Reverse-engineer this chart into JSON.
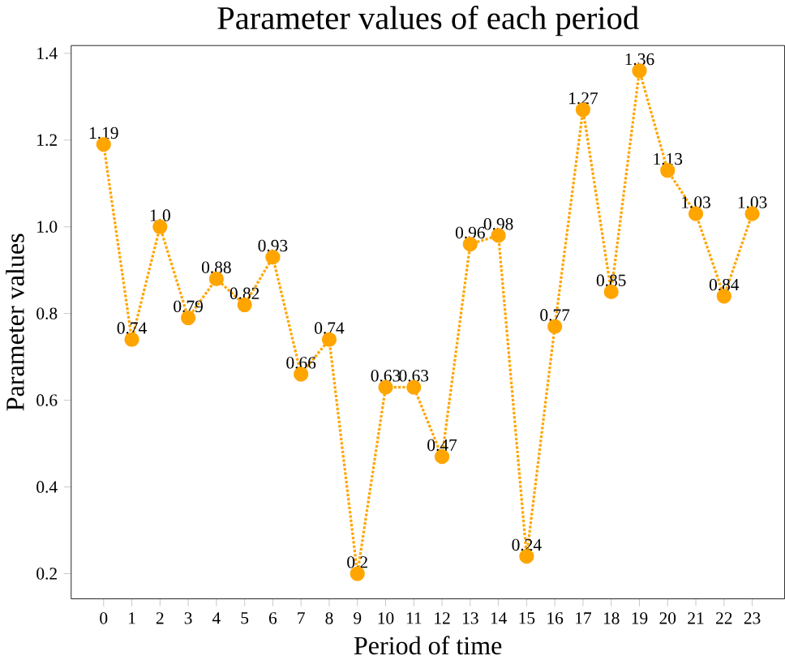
{
  "chart_data": {
    "type": "line",
    "title": "Parameter values of each period",
    "xlabel": "Period of time",
    "ylabel": "Parameter values",
    "x": [
      0,
      1,
      2,
      3,
      4,
      5,
      6,
      7,
      8,
      9,
      10,
      11,
      12,
      13,
      14,
      15,
      16,
      17,
      18,
      19,
      20,
      21,
      22,
      23
    ],
    "values": [
      1.19,
      0.74,
      1.0,
      0.79,
      0.88,
      0.82,
      0.93,
      0.66,
      0.74,
      0.2,
      0.63,
      0.63,
      0.47,
      0.96,
      0.98,
      0.24,
      0.77,
      1.27,
      0.85,
      1.36,
      1.13,
      1.03,
      0.84,
      1.03
    ],
    "value_labels": [
      "1.19",
      "0.74",
      "1.0",
      "0.79",
      "0.88",
      "0.82",
      "0.93",
      "0.66",
      "0.74",
      "0.2",
      "0.63",
      "0.63",
      "0.47",
      "0.96",
      "0.98",
      "0.24",
      "0.77",
      "1.27",
      "0.85",
      "1.36",
      "1.13",
      "1.03",
      "0.84",
      "1.03"
    ],
    "color": "#ffa500",
    "marker": "circle",
    "line_style": "dotted",
    "xlim": [
      -1.15,
      24.15
    ],
    "xticks": [
      0,
      1,
      2,
      3,
      4,
      5,
      6,
      7,
      8,
      9,
      10,
      11,
      12,
      13,
      14,
      15,
      16,
      17,
      18,
      19,
      20,
      21,
      22,
      23
    ],
    "ylim": [
      0.142,
      1.418
    ],
    "yticks": [
      0.2,
      0.4,
      0.6,
      0.8,
      {
        "value": 1.0,
        "label": "1.0"
      },
      1.2,
      1.4
    ],
    "grid": false
  }
}
